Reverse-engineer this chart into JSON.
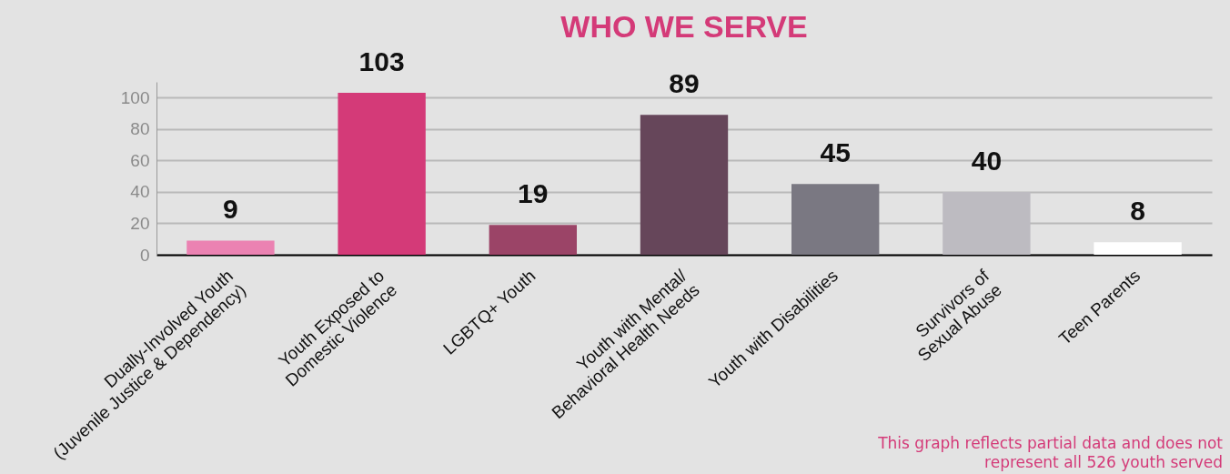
{
  "chart_data": {
    "type": "bar",
    "title": "WHO WE SERVE",
    "categories": [
      "Dually-Involved Youth\n(Juvenile Justice & Dependency)",
      "Youth Exposed to\nDomestic Violence",
      "LGBTQ+ Youth",
      "Youth with Mental/\nBehavioral Health Needs",
      "Youth with Disabilities",
      "Survivors of\nSexual Abuse",
      "Teen Parents"
    ],
    "values": [
      9,
      103,
      19,
      89,
      45,
      40,
      8
    ],
    "colors": [
      "#eb82b2",
      "#d43a78",
      "#9b4467",
      "#66465a",
      "#7a7882",
      "#bdbbc1",
      "#ffffff"
    ],
    "ylim": [
      0,
      110
    ],
    "yticks": [
      0,
      20,
      40,
      60,
      80,
      100
    ],
    "grid": "y",
    "data_labels": true,
    "annotations": [
      "This graph reflects partial data and does not represent all 526 youth served"
    ]
  }
}
